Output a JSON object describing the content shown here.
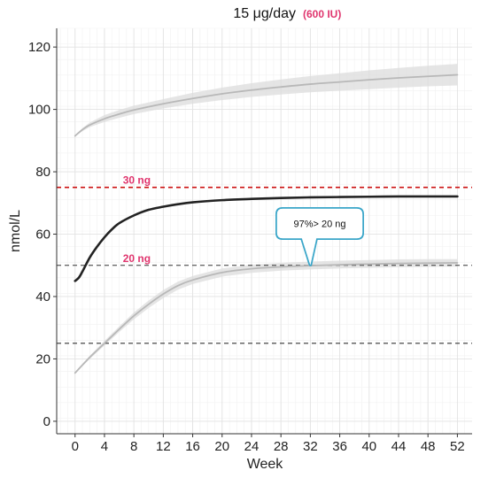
{
  "chart_data": {
    "type": "line",
    "title": "15 μg/day",
    "subtitle": "(600 IU)",
    "xlabel": "Week",
    "ylabel": "nmol/L",
    "xlim": [
      -2.5,
      54
    ],
    "ylim": [
      -4,
      126
    ],
    "xticks": [
      0,
      4,
      8,
      12,
      16,
      20,
      24,
      28,
      32,
      36,
      40,
      44,
      48,
      52
    ],
    "yticks": [
      0,
      20,
      40,
      60,
      80,
      100,
      120
    ],
    "grid": true,
    "legend": "none",
    "series": [
      {
        "role": "upper-band",
        "color": "#b8b8b8",
        "x": [
          0,
          1,
          2,
          4,
          6,
          8,
          12,
          16,
          20,
          24,
          28,
          32,
          36,
          40,
          44,
          48,
          52
        ],
        "y": [
          91.5,
          93.5,
          95,
          97,
          98.5,
          99.8,
          101.8,
          103.5,
          105,
          106.2,
          107.2,
          108.1,
          108.8,
          109.5,
          110.1,
          110.6,
          111.1
        ],
        "lower": [
          91.5,
          93,
          94.3,
          96,
          97.3,
          98.5,
          100.3,
          101.8,
          103,
          104,
          104.8,
          105.5,
          106,
          106.5,
          107,
          107.4,
          107.7
        ],
        "upper": [
          91.5,
          94,
          95.8,
          98.2,
          99.8,
          101.2,
          103.3,
          105.3,
          107,
          108.4,
          109.6,
          110.7,
          111.6,
          112.5,
          113.3,
          114,
          114.6
        ]
      },
      {
        "role": "median",
        "color": "#222222",
        "x": [
          0,
          0.5,
          1,
          2,
          3,
          4,
          5,
          6,
          8,
          10,
          12,
          14,
          16,
          20,
          24,
          28,
          32,
          36,
          40,
          44,
          48,
          52
        ],
        "y": [
          45,
          46,
          48,
          52.5,
          56,
          59,
          61.5,
          63.5,
          66,
          67.8,
          68.8,
          69.6,
          70.2,
          70.9,
          71.3,
          71.6,
          71.8,
          71.9,
          72,
          72.1,
          72.1,
          72.1
        ]
      },
      {
        "role": "lower-band",
        "color": "#b8b8b8",
        "x": [
          0,
          2,
          4,
          6,
          8,
          10,
          12,
          14,
          16,
          20,
          24,
          28,
          32,
          36,
          40,
          44,
          48,
          52
        ],
        "y": [
          15.5,
          20.5,
          25,
          29.5,
          33.8,
          37.5,
          40.8,
          43.5,
          45.3,
          47.7,
          48.9,
          49.5,
          49.9,
          50.2,
          50.4,
          50.6,
          50.7,
          50.8
        ],
        "lower": [
          15.5,
          20,
          24.3,
          28.6,
          32.7,
          36.3,
          39.5,
          42.2,
          44,
          46.4,
          47.6,
          48.3,
          48.7,
          49,
          49.2,
          49.4,
          49.5,
          49.6
        ],
        "upper": [
          15.5,
          21,
          25.8,
          30.4,
          34.9,
          38.7,
          42.1,
          44.8,
          46.6,
          49,
          50.2,
          50.8,
          51.2,
          51.5,
          51.7,
          51.9,
          52,
          52
        ]
      }
    ],
    "reference_lines": [
      {
        "y": 75,
        "label": "30 ng",
        "color": "#cc1111",
        "label_x": 6.5
      },
      {
        "y": 50,
        "label": "20 ng",
        "color": "#333333",
        "label_x": 6.5
      },
      {
        "y": 25,
        "label": "",
        "color": "#333333"
      }
    ],
    "annotation": {
      "text": "97%> 20 ng",
      "point_x": 32,
      "point_y": 50
    }
  }
}
